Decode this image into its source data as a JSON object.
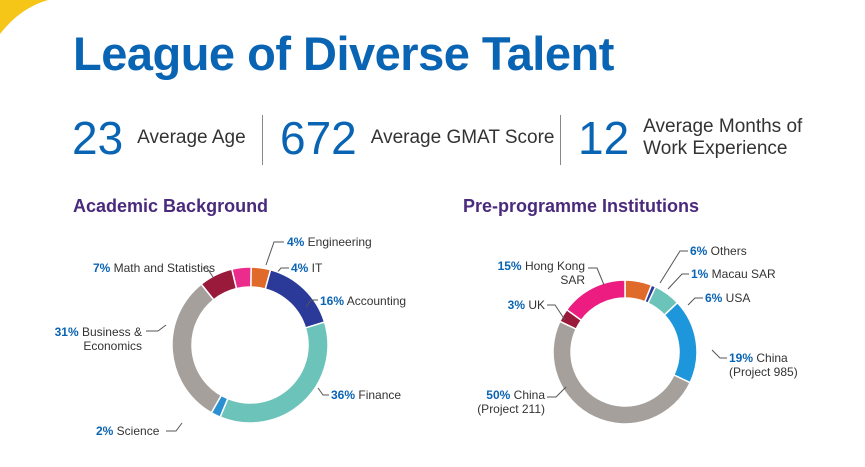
{
  "title": "League of Diverse Talent",
  "stats": [
    {
      "value": "23",
      "label_lines": [
        "Average Age"
      ]
    },
    {
      "value": "672",
      "label_lines": [
        "Average GMAT Score"
      ]
    },
    {
      "value": "12",
      "label_lines": [
        "Average Months of",
        "Work Experience"
      ]
    }
  ],
  "colors": {
    "title": "#0a64b4",
    "section_title": "#4a2a7c",
    "percent": "#0a64b4",
    "accent": "#f5c518"
  },
  "chart_data": [
    {
      "type": "pie",
      "title": "Academic Background",
      "donut": true,
      "slices": [
        {
          "label_lines": [
            "Engineering"
          ],
          "value": 4,
          "color": "#ec2c8c"
        },
        {
          "label_lines": [
            "IT"
          ],
          "value": 4,
          "color": "#e06a2a"
        },
        {
          "label_lines": [
            "Accounting"
          ],
          "value": 16,
          "color": "#2b3a98"
        },
        {
          "label_lines": [
            "Finance"
          ],
          "value": 36,
          "color": "#6cc3b9"
        },
        {
          "label_lines": [
            "Science"
          ],
          "value": 2,
          "color": "#2b8fd4"
        },
        {
          "label_lines": [
            "Business &",
            "Economics"
          ],
          "value": 31,
          "color": "#a5a09c"
        },
        {
          "label_lines": [
            "Math and Statistics"
          ],
          "value": 7,
          "color": "#9a1a3c"
        }
      ]
    },
    {
      "type": "pie",
      "title": "Pre-programme Institutions",
      "donut": true,
      "slices": [
        {
          "label_lines": [
            "Others"
          ],
          "value": 6,
          "color": "#e06a2a"
        },
        {
          "label_lines": [
            "Macau  SAR"
          ],
          "value": 1,
          "color": "#2b3a98"
        },
        {
          "label_lines": [
            "USA"
          ],
          "value": 6,
          "color": "#6cc3b9"
        },
        {
          "label_lines": [
            "China",
            "(Project 985)"
          ],
          "value": 19,
          "color": "#1e96dc"
        },
        {
          "label_lines": [
            "China",
            "(Project 211)"
          ],
          "value": 50,
          "color": "#a5a09c"
        },
        {
          "label_lines": [
            "UK"
          ],
          "value": 3,
          "color": "#9a1a3c"
        },
        {
          "label_lines": [
            "Hong Kong",
            "SAR"
          ],
          "value": 15,
          "color": "#ec1c80"
        }
      ]
    }
  ]
}
